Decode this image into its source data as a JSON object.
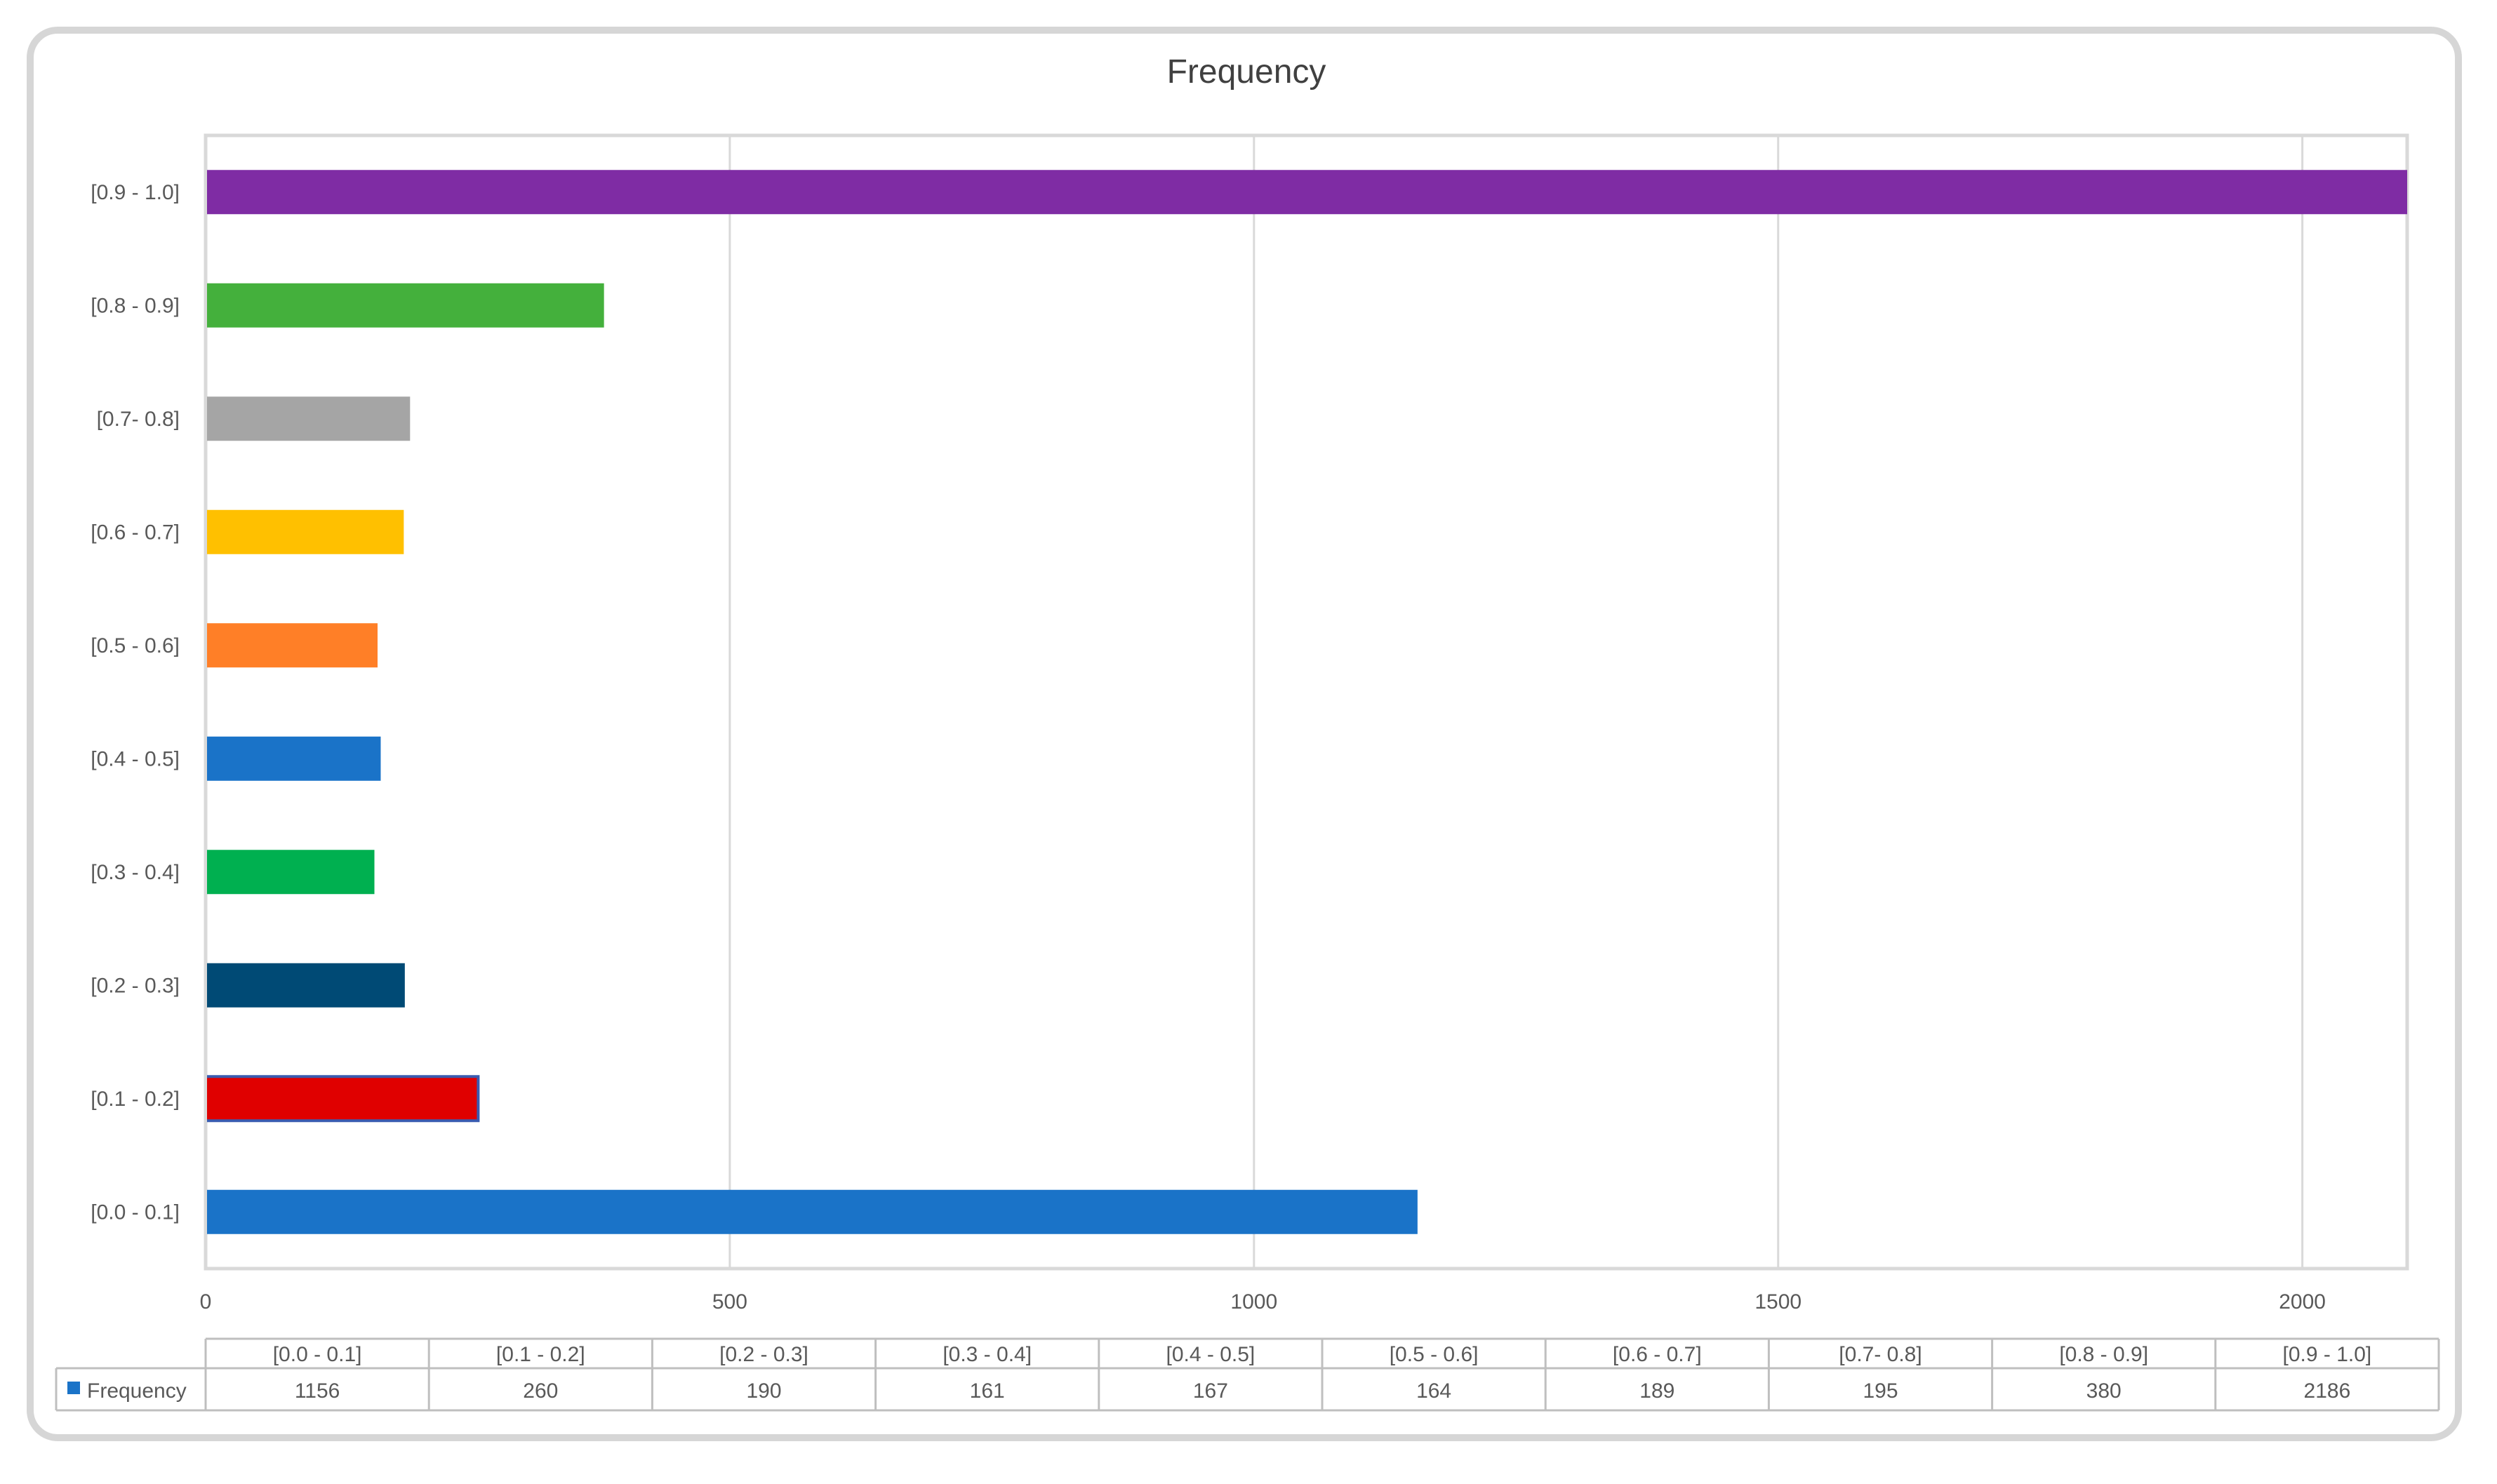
{
  "chart_data": {
    "type": "bar",
    "orientation": "horizontal",
    "title": "Frequency",
    "categories": [
      "[0.0 - 0.1]",
      "[0.1 - 0.2]",
      "[0.2 - 0.3]",
      "[0.3 - 0.4]",
      "[0.4 - 0.5]",
      "[0.5 - 0.6]",
      "[0.6 - 0.7]",
      "[0.7- 0.8]",
      "[0.8 - 0.9]",
      "[0.9 - 1.0]"
    ],
    "series": [
      {
        "name": "Frequency",
        "values": [
          1156,
          260,
          190,
          161,
          167,
          164,
          189,
          195,
          380,
          2186
        ]
      }
    ],
    "bar_colors": [
      "#1a73c8",
      "#e00000",
      "#004a75",
      "#00b050",
      "#1a73c8",
      "#ff7f27",
      "#ffc000",
      "#a5a5a5",
      "#44b03c",
      "#7f2ca4"
    ],
    "x_axis": {
      "ticks": [
        0,
        500,
        1000,
        1500,
        2000
      ],
      "range": [
        0,
        2100
      ]
    },
    "grid": true,
    "data_table": {
      "shown": true,
      "legend_key_color": "#1a73c8"
    }
  }
}
